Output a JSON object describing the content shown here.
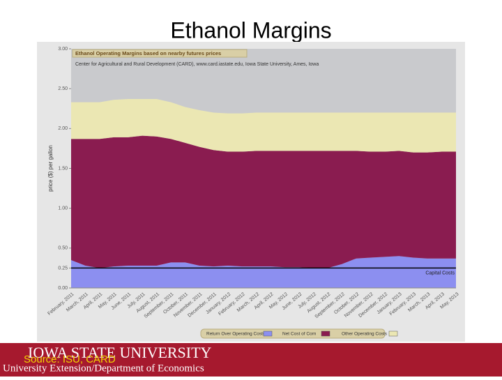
{
  "slide_title": "Ethanol Margins",
  "chart_data": {
    "type": "stacked-area",
    "title": "Ethanol Operating Margins based on nearby futures prices",
    "subtitle": "Center for Agricultural and Rural Development (CARD), www.card.iastate.edu, Iowa State University, Ames, Iowa",
    "y_label": "price ($) per gallon",
    "categories": [
      "February, 2011",
      "March, 2011",
      "April, 2011",
      "May, 2011",
      "June, 2011",
      "July, 2011",
      "August, 2011",
      "September, 2011",
      "October, 2011",
      "November, 2011",
      "December, 2011",
      "January, 2012",
      "February, 2012",
      "March, 2012",
      "April, 2012",
      "May, 2012",
      "June, 2012",
      "July, 2012",
      "August, 2012",
      "September, 2012",
      "October, 2012",
      "November, 2012",
      "December, 2012",
      "January, 2013",
      "February, 2013",
      "March, 2013",
      "April, 2013",
      "May, 2013"
    ],
    "series": [
      {
        "name": "Return Over Operating Costs",
        "color": "#8c8ff0",
        "values": [
          0.35,
          0.28,
          0.25,
          0.27,
          0.28,
          0.28,
          0.28,
          0.32,
          0.32,
          0.28,
          0.27,
          0.28,
          0.27,
          0.27,
          0.27,
          0.26,
          0.26,
          0.25,
          0.25,
          0.3,
          0.37,
          0.38,
          0.39,
          0.4,
          0.38,
          0.37,
          0.37,
          0.37
        ]
      },
      {
        "name": "Net Cost of Corn",
        "color": "#8a1c50",
        "values": [
          1.52,
          1.59,
          1.62,
          1.62,
          1.61,
          1.63,
          1.62,
          1.55,
          1.5,
          1.49,
          1.46,
          1.43,
          1.44,
          1.45,
          1.45,
          1.46,
          1.46,
          1.47,
          1.47,
          1.42,
          1.35,
          1.33,
          1.32,
          1.32,
          1.32,
          1.33,
          1.34,
          1.34
        ]
      },
      {
        "name": "Other Operating Costs",
        "color": "#ebe7b3",
        "values": [
          0.46,
          0.46,
          0.46,
          0.47,
          0.48,
          0.46,
          0.47,
          0.46,
          0.45,
          0.46,
          0.47,
          0.48,
          0.48,
          0.48,
          0.48,
          0.48,
          0.48,
          0.48,
          0.48,
          0.48,
          0.48,
          0.49,
          0.49,
          0.48,
          0.5,
          0.5,
          0.49,
          0.49
        ]
      }
    ],
    "reference_line": {
      "label": "Capital Costs",
      "value": 0.25
    },
    "ylim": [
      0,
      3
    ],
    "yticks": [
      {
        "value": 0,
        "label": "0.00"
      },
      {
        "value": 0.25,
        "label": "0.25"
      },
      {
        "value": 0.5,
        "label": "0.50"
      },
      {
        "value": 1,
        "label": "1.00"
      },
      {
        "value": 1.5,
        "label": "1.50"
      },
      {
        "value": 2,
        "label": "2.00"
      },
      {
        "value": 2.5,
        "label": "2.50"
      },
      {
        "value": 3,
        "label": "3.00"
      }
    ],
    "grid": false,
    "legend": "bottom"
  },
  "footer": {
    "university": "IOWA STATE UNIVERSITY",
    "department": "University Extension/Department of Economics",
    "source": "Source: ISU, CARD"
  }
}
